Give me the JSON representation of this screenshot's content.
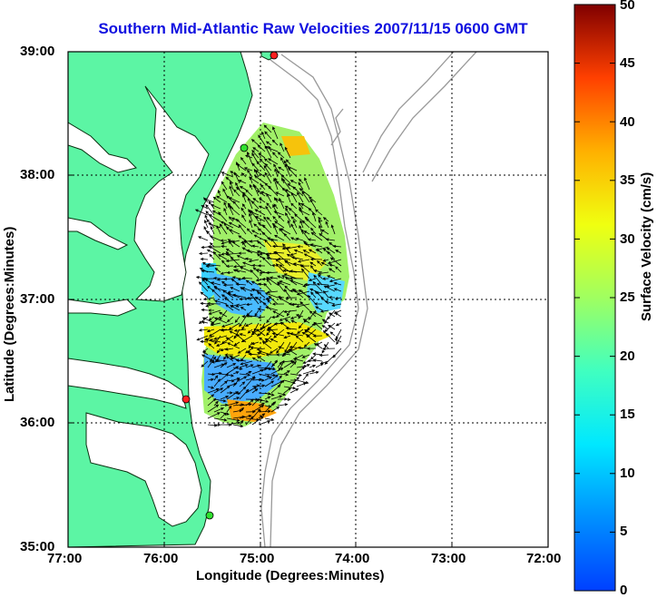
{
  "title": "Southern Mid-Atlantic Raw Velocities 2007/11/15 0600 GMT",
  "xaxis": {
    "label": "Longitude (Degrees:Minutes)",
    "ticks": [
      "77:00",
      "76:00",
      "75:00",
      "74:00",
      "73:00",
      "72:00"
    ]
  },
  "yaxis": {
    "label": "Latitude (Degrees:Minutes)",
    "ticks": [
      "39:00",
      "38:00",
      "37:00",
      "36:00",
      "35:00"
    ]
  },
  "colorbar": {
    "label": "Surface Velocity (cm/s)",
    "ticks": [
      "50",
      "45",
      "40",
      "35",
      "30",
      "25",
      "20",
      "15",
      "10",
      "5",
      "0"
    ],
    "range": [
      0,
      50
    ],
    "colormap": "jet"
  },
  "colors": {
    "title": "#1010e0",
    "land": "#5cf5a4",
    "station_red": "#ff2020",
    "station_green": "#30e030"
  },
  "stations": [
    {
      "lon": -75.12,
      "lat": 38.98,
      "color": "red"
    },
    {
      "lon": -75.38,
      "lat": 38.18,
      "color": "green"
    },
    {
      "lon": -75.65,
      "lat": 36.18,
      "color": "red"
    },
    {
      "lon": -75.5,
      "lat": 35.25,
      "color": "green"
    }
  ]
}
